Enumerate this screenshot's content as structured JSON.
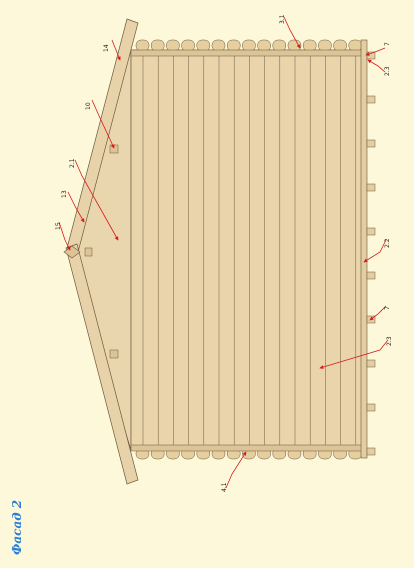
{
  "sheet": {
    "title": "Фасад 2",
    "colors": {
      "background": "#fdf8da",
      "wood": "#e8d2aa",
      "wood_line": "#6b5a3c",
      "callout": "#d81b1b",
      "title": "#2b7fd6"
    }
  },
  "callouts": [
    {
      "id": "c-14",
      "label": "14"
    },
    {
      "id": "c-31",
      "label": "3.1"
    },
    {
      "id": "c-7a",
      "label": "7"
    },
    {
      "id": "c-23a",
      "label": "2.3"
    },
    {
      "id": "c-10",
      "label": "10"
    },
    {
      "id": "c-21",
      "label": "2.1"
    },
    {
      "id": "c-13",
      "label": "13"
    },
    {
      "id": "c-15",
      "label": "15"
    },
    {
      "id": "c-22",
      "label": "2.2"
    },
    {
      "id": "c-7b",
      "label": "7"
    },
    {
      "id": "c-23b",
      "label": "2.3"
    },
    {
      "id": "c-41",
      "label": "4.1"
    }
  ]
}
